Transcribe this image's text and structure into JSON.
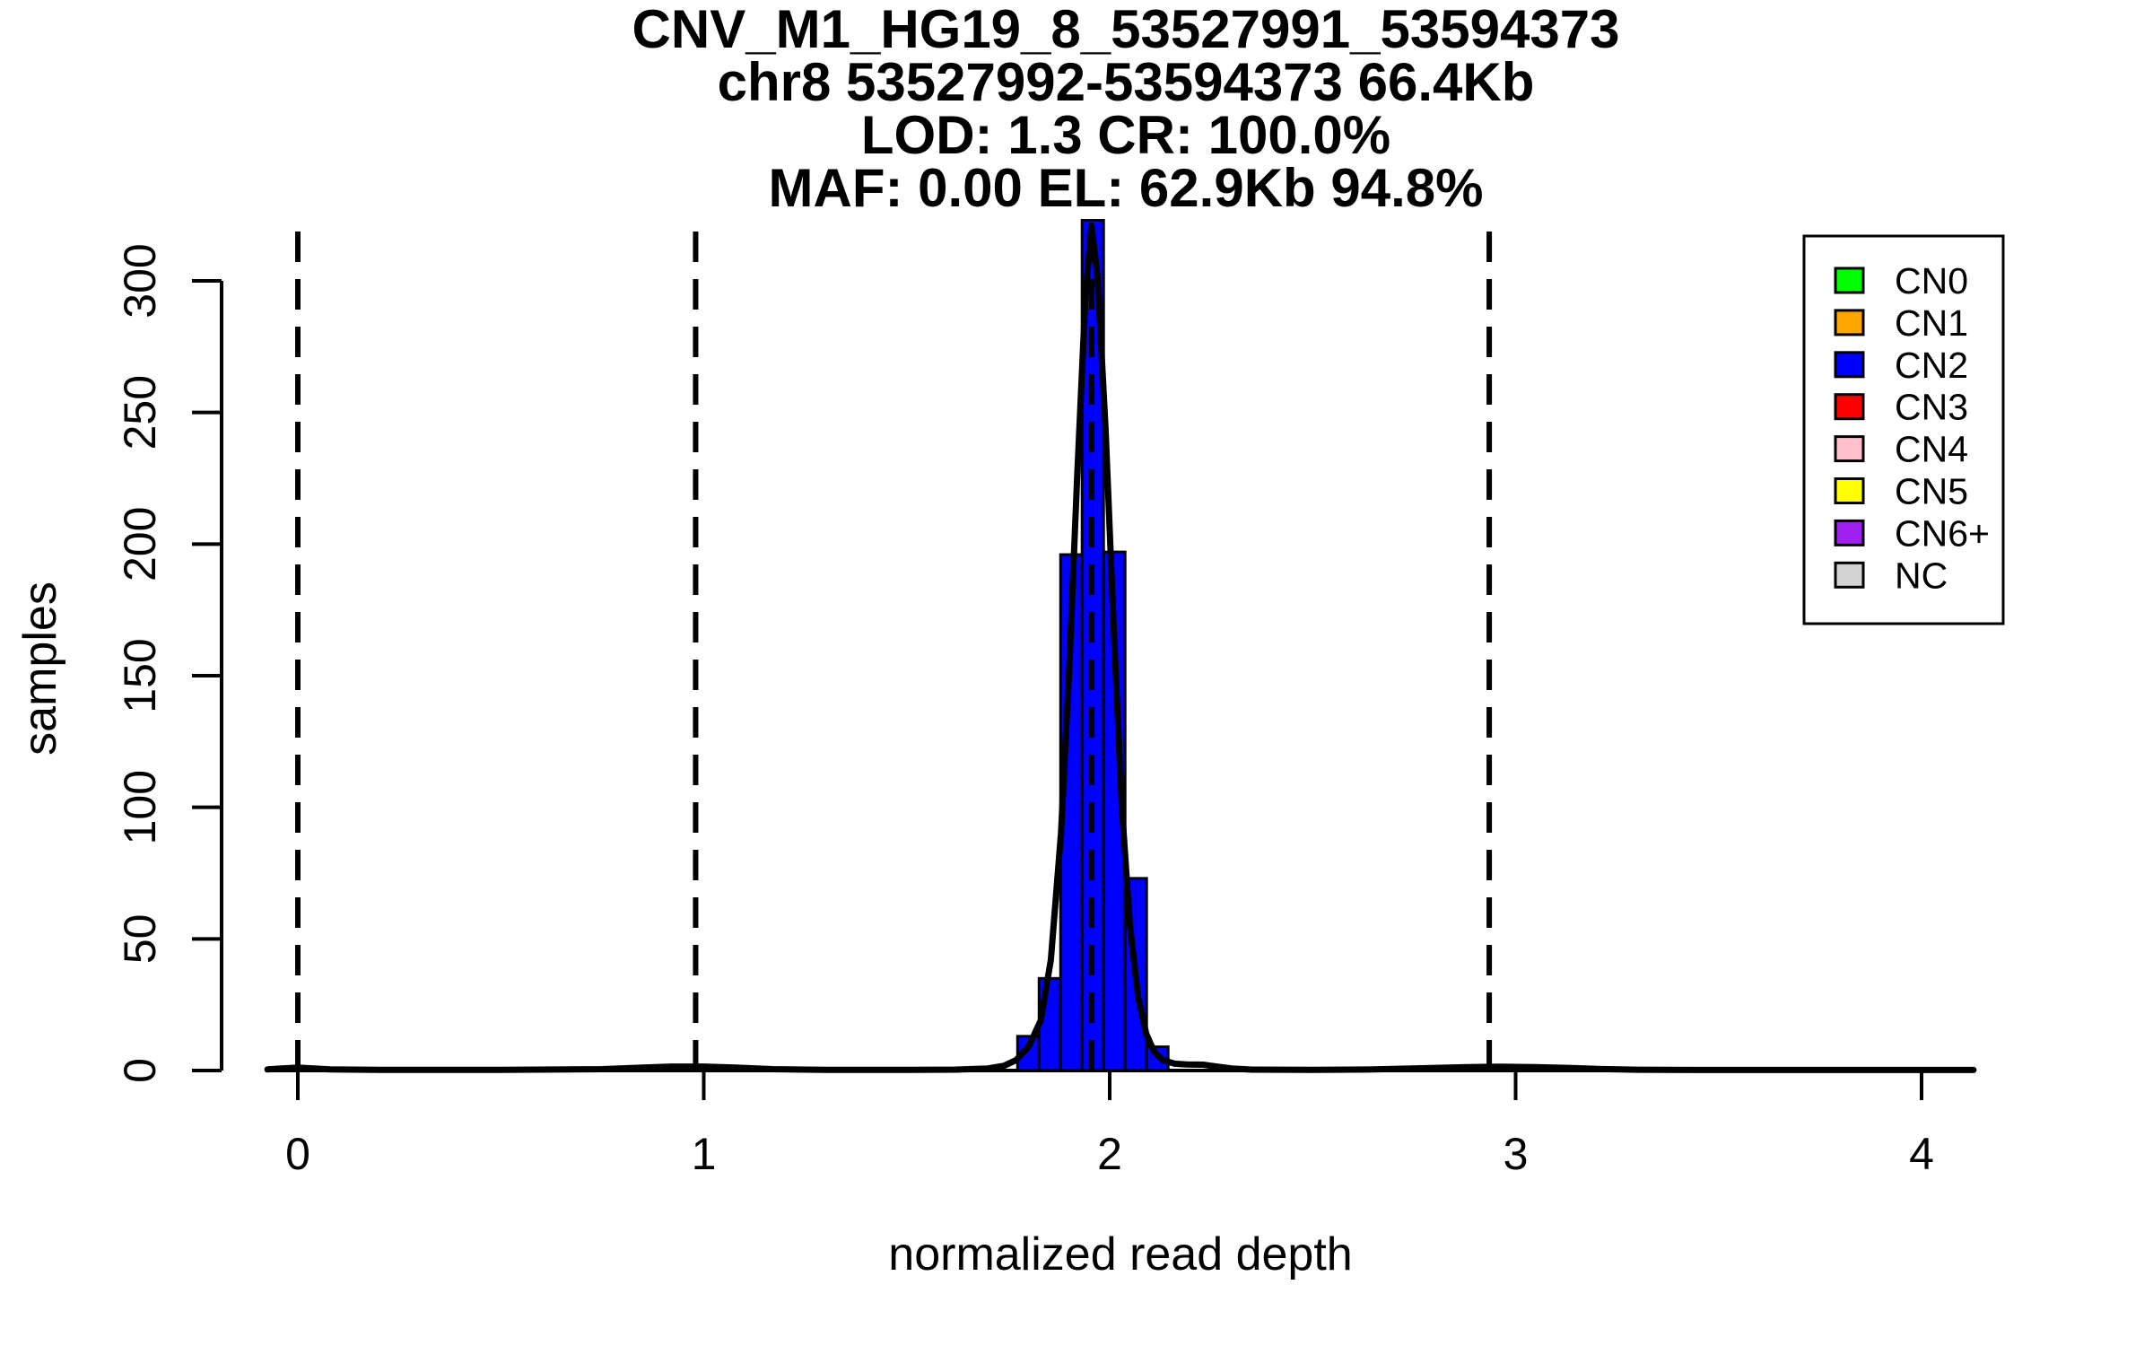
{
  "chart_data": {
    "type": "bar",
    "subtype": "histogram",
    "title_lines": [
      "CNV_M1_HG19_8_53527991_53594373",
      "chr8 53527992-53594373 66.4Kb",
      "LOD: 1.3 CR: 100.0%",
      "MAF: 0.00 EL: 62.9Kb 94.8%"
    ],
    "xlabel": "normalized read depth",
    "ylabel": "samples",
    "x_ticks": [
      0,
      1,
      2,
      3,
      4
    ],
    "y_ticks": [
      0,
      50,
      100,
      150,
      200,
      250,
      300
    ],
    "xlim": [
      -0.075,
      4.128
    ],
    "ylim": [
      0,
      323
    ],
    "grid": false,
    "bar_fill": "#0000FF",
    "bar_stroke": "#000000",
    "bins": {
      "start": 1.773,
      "width": 0.053,
      "counts": [
        13,
        35,
        196,
        323,
        197,
        73,
        9
      ]
    },
    "cn_dashed_lines_x": [
      0.0,
      0.98,
      1.956,
      2.935
    ],
    "density_curve": [
      [
        -0.075,
        0.4
      ],
      [
        -0.04,
        0.8
      ],
      [
        0.0,
        1.1
      ],
      [
        0.04,
        0.8
      ],
      [
        0.08,
        0.4
      ],
      [
        0.2,
        0.25
      ],
      [
        0.5,
        0.25
      ],
      [
        0.75,
        0.5
      ],
      [
        0.85,
        1.1
      ],
      [
        0.92,
        1.5
      ],
      [
        1.0,
        1.5
      ],
      [
        1.08,
        1.1
      ],
      [
        1.17,
        0.5
      ],
      [
        1.3,
        0.25
      ],
      [
        1.5,
        0.25
      ],
      [
        1.62,
        0.35
      ],
      [
        1.7,
        0.8
      ],
      [
        1.74,
        1.8
      ],
      [
        1.77,
        4
      ],
      [
        1.8,
        9
      ],
      [
        1.83,
        19
      ],
      [
        1.855,
        42
      ],
      [
        1.88,
        90
      ],
      [
        1.9,
        152
      ],
      [
        1.92,
        226
      ],
      [
        1.94,
        293
      ],
      [
        1.955,
        321
      ],
      [
        1.97,
        302
      ],
      [
        1.99,
        243
      ],
      [
        2.01,
        168
      ],
      [
        2.03,
        100
      ],
      [
        2.05,
        55
      ],
      [
        2.07,
        28
      ],
      [
        2.09,
        14
      ],
      [
        2.11,
        7
      ],
      [
        2.13,
        4
      ],
      [
        2.16,
        2.6
      ],
      [
        2.19,
        2.3
      ],
      [
        2.23,
        2.2
      ],
      [
        2.26,
        1.6
      ],
      [
        2.3,
        0.8
      ],
      [
        2.35,
        0.35
      ],
      [
        2.5,
        0.25
      ],
      [
        2.65,
        0.4
      ],
      [
        2.78,
        0.9
      ],
      [
        2.88,
        1.3
      ],
      [
        2.96,
        1.45
      ],
      [
        3.05,
        1.3
      ],
      [
        3.13,
        1.0
      ],
      [
        3.2,
        0.6
      ],
      [
        3.3,
        0.3
      ],
      [
        3.45,
        0.2
      ],
      [
        3.7,
        0.2
      ],
      [
        4.0,
        0.2
      ],
      [
        4.128,
        0.2
      ]
    ],
    "legend_position": "top-right",
    "legend": [
      {
        "label": "CN0",
        "color": "#00FF00"
      },
      {
        "label": "CN1",
        "color": "#FFA500"
      },
      {
        "label": "CN2",
        "color": "#0000FF"
      },
      {
        "label": "CN3",
        "color": "#FF0000"
      },
      {
        "label": "CN4",
        "color": "#FFC0CB"
      },
      {
        "label": "CN5",
        "color": "#FFFF00"
      },
      {
        "label": "CN6+",
        "color": "#A020F0"
      },
      {
        "label": "NC",
        "color": "#D3D3D3"
      }
    ]
  }
}
